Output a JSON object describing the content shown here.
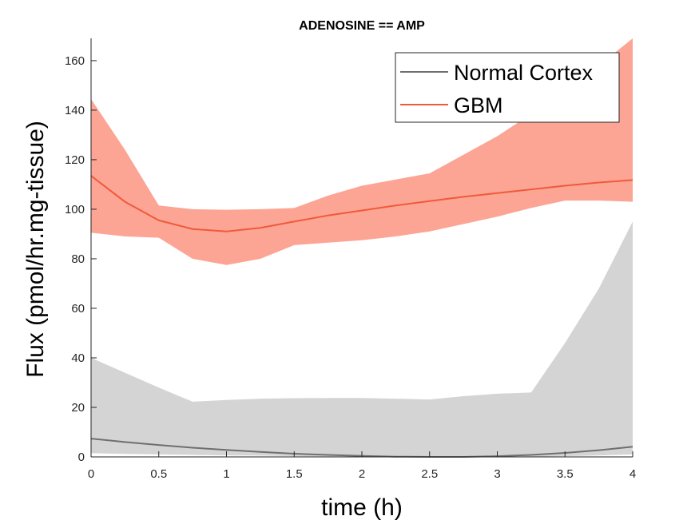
{
  "chart_data": {
    "type": "area",
    "title": "ADENOSINE == AMP",
    "xlabel": "time (h)",
    "ylabel": "Flux (pmol/hr.mg-tissue)",
    "xlim": [
      0,
      4
    ],
    "ylim": [
      0,
      169
    ],
    "xticks": [
      "0",
      "0.5",
      "1",
      "1.5",
      "2",
      "2.5",
      "3",
      "3.5",
      "4"
    ],
    "yticks": [
      "0",
      "20",
      "40",
      "60",
      "80",
      "100",
      "120",
      "140",
      "160"
    ],
    "grid": false,
    "legend_position": "top-right",
    "series": [
      {
        "name": "Normal Cortex",
        "color": "#6f6f6f",
        "band_color": "#d4d4d4",
        "x": [
          0,
          0.25,
          0.5,
          0.75,
          1.0,
          1.25,
          1.5,
          1.75,
          2.0,
          2.25,
          2.5,
          2.75,
          3.0,
          3.25,
          3.5,
          3.75,
          4.0
        ],
        "mean": [
          7.4,
          6.0,
          4.8,
          3.7,
          2.8,
          2.0,
          1.3,
          0.8,
          0.4,
          0.1,
          0.0,
          0.0,
          0.3,
          0.8,
          1.6,
          2.7,
          4.1
        ],
        "upper": [
          40.0,
          34.0,
          28.0,
          22.3,
          23.0,
          23.5,
          23.7,
          23.8,
          23.8,
          23.5,
          23.2,
          24.5,
          25.5,
          26.0,
          46.0,
          68.0,
          95.0
        ],
        "lower": [
          1.5,
          1.2,
          1.0,
          0.8,
          0.6,
          0.5,
          0.3,
          0.2,
          0.1,
          0.0,
          0.0,
          0.0,
          0.0,
          0.1,
          0.3,
          0.6,
          1.0
        ]
      },
      {
        "name": "GBM",
        "color": "#f05a3a",
        "band_color": "#fca595",
        "x": [
          0,
          0.25,
          0.5,
          0.75,
          1.0,
          1.25,
          1.5,
          1.75,
          2.0,
          2.25,
          2.5,
          2.75,
          3.0,
          3.25,
          3.5,
          3.75,
          4.0
        ],
        "mean": [
          113.5,
          103.0,
          95.5,
          92.0,
          91.0,
          92.5,
          95.0,
          97.5,
          99.5,
          101.5,
          103.3,
          105.0,
          106.5,
          108.0,
          109.5,
          110.8,
          111.8
        ],
        "upper": [
          144.5,
          124.0,
          101.5,
          100.0,
          99.8,
          100.0,
          100.5,
          105.5,
          109.5,
          112.0,
          114.5,
          122.0,
          129.5,
          138.5,
          147.5,
          158.0,
          169.0
        ],
        "lower": [
          90.5,
          89.0,
          88.5,
          80.0,
          77.5,
          80.0,
          85.5,
          86.5,
          87.5,
          89.0,
          91.0,
          94.0,
          97.0,
          100.5,
          103.5,
          103.5,
          103.0
        ]
      }
    ]
  }
}
